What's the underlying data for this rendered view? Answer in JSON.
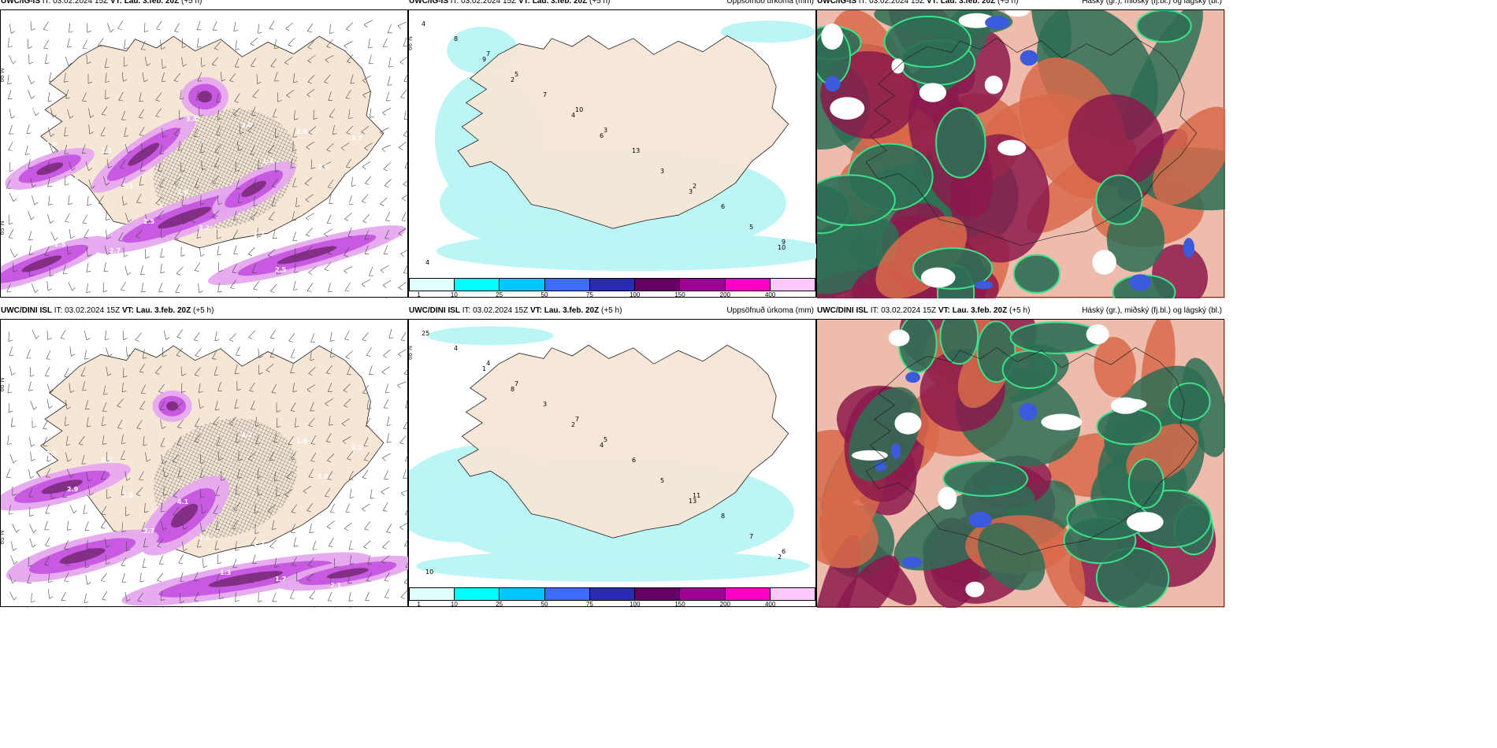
{
  "rows": [
    {
      "panels": [
        {
          "model": "UWC/IG-IS",
          "it_label": "IT:",
          "it": "03.02.2024 15Z",
          "vt_label": "VT:",
          "vt": "Lau. 3.feb. 20Z",
          "lead": "(+5 h)",
          "right": ""
        },
        {
          "model": "UWC/IG-IS",
          "it_label": "IT:",
          "it": "03.02.2024 15Z",
          "vt_label": "VT:",
          "vt": "Lau. 3.feb. 20Z",
          "lead": "(+5 h)",
          "right": "Uppsöfnuð úrkoma (mm)"
        },
        {
          "model": "UWC/IG-IS",
          "it_label": "IT:",
          "it": "03.02.2024 15Z",
          "vt_label": "VT:",
          "vt": "Lau. 3.feb. 20Z",
          "lead": "(+5 h)",
          "right": "Háský (gr.), miðský (fj.bl.) og lágský (bl.)"
        }
      ]
    },
    {
      "panels": [
        {
          "model": "UWC/DINI ISL",
          "it_label": "IT:",
          "it": "03.02.2024 15Z",
          "vt_label": "VT:",
          "vt": "Lau. 3.feb. 20Z",
          "lead": "(+5 h)",
          "right": ""
        },
        {
          "model": "UWC/DINI ISL",
          "it_label": "IT:",
          "it": "03.02.2024 15Z",
          "vt_label": "VT:",
          "vt": "Lau. 3.feb. 20Z",
          "lead": "(+5 h)",
          "right": "Uppsöfnuð úrkoma (mm)"
        },
        {
          "model": "UWC/DINI ISL",
          "it_label": "IT:",
          "it": "03.02.2024 15Z",
          "vt_label": "VT:",
          "vt": "Lau. 3.feb. 20Z",
          "lead": "(+5 h)",
          "right": "Háský (gr.), miðský (fj.bl.) og lágský (bl.)"
        }
      ]
    }
  ],
  "lat_labels": [
    "66°N",
    "65°N"
  ],
  "colorbar": {
    "labels": [
      "1",
      "10",
      "25",
      "50",
      "75",
      "100",
      "150",
      "200",
      "400"
    ],
    "colors": [
      "#e0ffff",
      "#00ffff",
      "#00c8ff",
      "#3c6cff",
      "#2a2ab4",
      "#640064",
      "#a00096",
      "#ff00c8",
      "#ffc8ff"
    ]
  },
  "snow_values": {
    "row1": [
      "3.0",
      "2.1",
      "2.0",
      "2.7",
      "1.8",
      "1.0",
      "2.1",
      "3.2",
      "2.5",
      "1.7",
      "2.0",
      "2.5",
      "1.5",
      "2.6",
      "2.7",
      "2.0",
      "2.3",
      "3.0",
      "2.5",
      "1.7",
      "2.7",
      "3.4",
      "1.3",
      "0.5",
      "2.5"
    ],
    "row2": [
      "3.2",
      "2.3",
      "4.1",
      "2.7",
      "2.1",
      "2.4",
      "3.8",
      "2.5",
      "1.7",
      "3.2",
      "2.9",
      "2.7",
      "1.3",
      "1.6",
      "3.9",
      "3.5",
      "2.4",
      "4.2",
      "3.0",
      "2.3"
    ]
  },
  "precip_values": {
    "row1": [
      "4",
      "2",
      "6",
      "3",
      "10",
      "9",
      "4",
      "3",
      "5",
      "8",
      "7",
      "13",
      "6",
      "4",
      "5",
      "3",
      "2",
      "9",
      "7",
      "10"
    ],
    "row2": [
      "25",
      "8",
      "4",
      "13",
      "2",
      "1",
      "2",
      "5",
      "7",
      "4",
      "3",
      "6",
      "8",
      "10",
      "7",
      "5",
      "11",
      "6",
      "4",
      "7"
    ]
  },
  "colors": {
    "land": "#f6e6d6",
    "snow_light": "#e6a8ef",
    "snow_mid": "#c655e0",
    "snow_dark": "#7b2a7d",
    "precip_light": "#b8f4f6",
    "cloud_high": "#2e6e55",
    "cloud_mid": "#8b1a4c",
    "cloud_low": "#d86a4a"
  }
}
